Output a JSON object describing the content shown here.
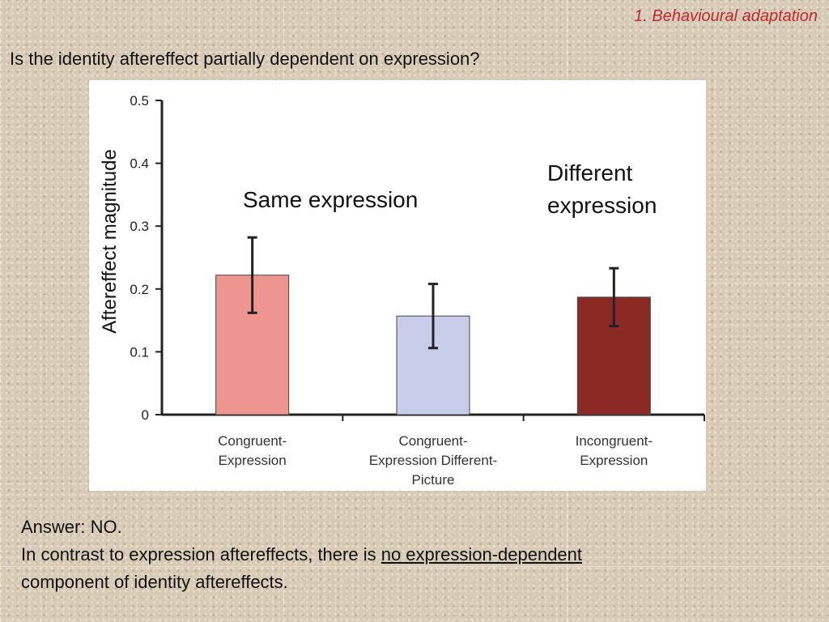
{
  "header": {
    "section_label": "1. Behavioural adaptation",
    "question": "Is the identity aftereffect partially dependent on expression?"
  },
  "chart_data": {
    "type": "bar",
    "categories": [
      "Congruent-\nExpression",
      "Congruent-\nExpression Different-\nPicture",
      "Incongruent-\nExpression"
    ],
    "values": [
      0.222,
      0.157,
      0.187
    ],
    "errors": [
      0.06,
      0.051,
      0.046
    ],
    "bar_colors": [
      "#ef9590",
      "#c8cde9",
      "#8b2a24"
    ],
    "ylabel": "Aftereffect magnitude",
    "xlabel": "",
    "ylim": [
      0,
      0.5
    ],
    "yticks": [
      "0",
      "0.1",
      "0.2",
      "0.3",
      "0.4",
      "0.5"
    ],
    "grid": false,
    "annotations": {
      "same": "Same expression",
      "different_line1": "Different",
      "different_line2": "expression"
    }
  },
  "answer": {
    "line1": "Answer: NO.",
    "line2_prefix": "In contrast to expression aftereffects, there is ",
    "line2_underlined": "no expression-dependent",
    "line3": "component of identity aftereffects."
  }
}
